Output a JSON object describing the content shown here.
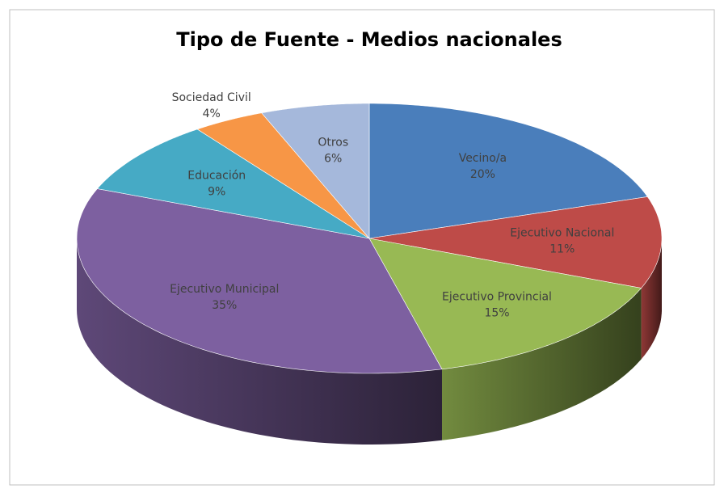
{
  "chart_data": {
    "type": "pie",
    "title": "Tipo de Fuente - Medios nacionales",
    "categories": [
      "Vecino/a",
      "Ejecutivo Nacional",
      "Ejecutivo Provincial",
      "Ejecutivo Municipal",
      "Educación",
      "Sociedad Civil",
      "Otros"
    ],
    "values": [
      20,
      11,
      15,
      35,
      9,
      4,
      6
    ],
    "value_labels": [
      "20%",
      "11%",
      "15%",
      "35%",
      "9%",
      "4%",
      "6%"
    ],
    "colors": [
      "#4a7ebb",
      "#be4b48",
      "#98b954",
      "#7d60a0",
      "#46aac5",
      "#f79646",
      "#a5b8db"
    ]
  }
}
